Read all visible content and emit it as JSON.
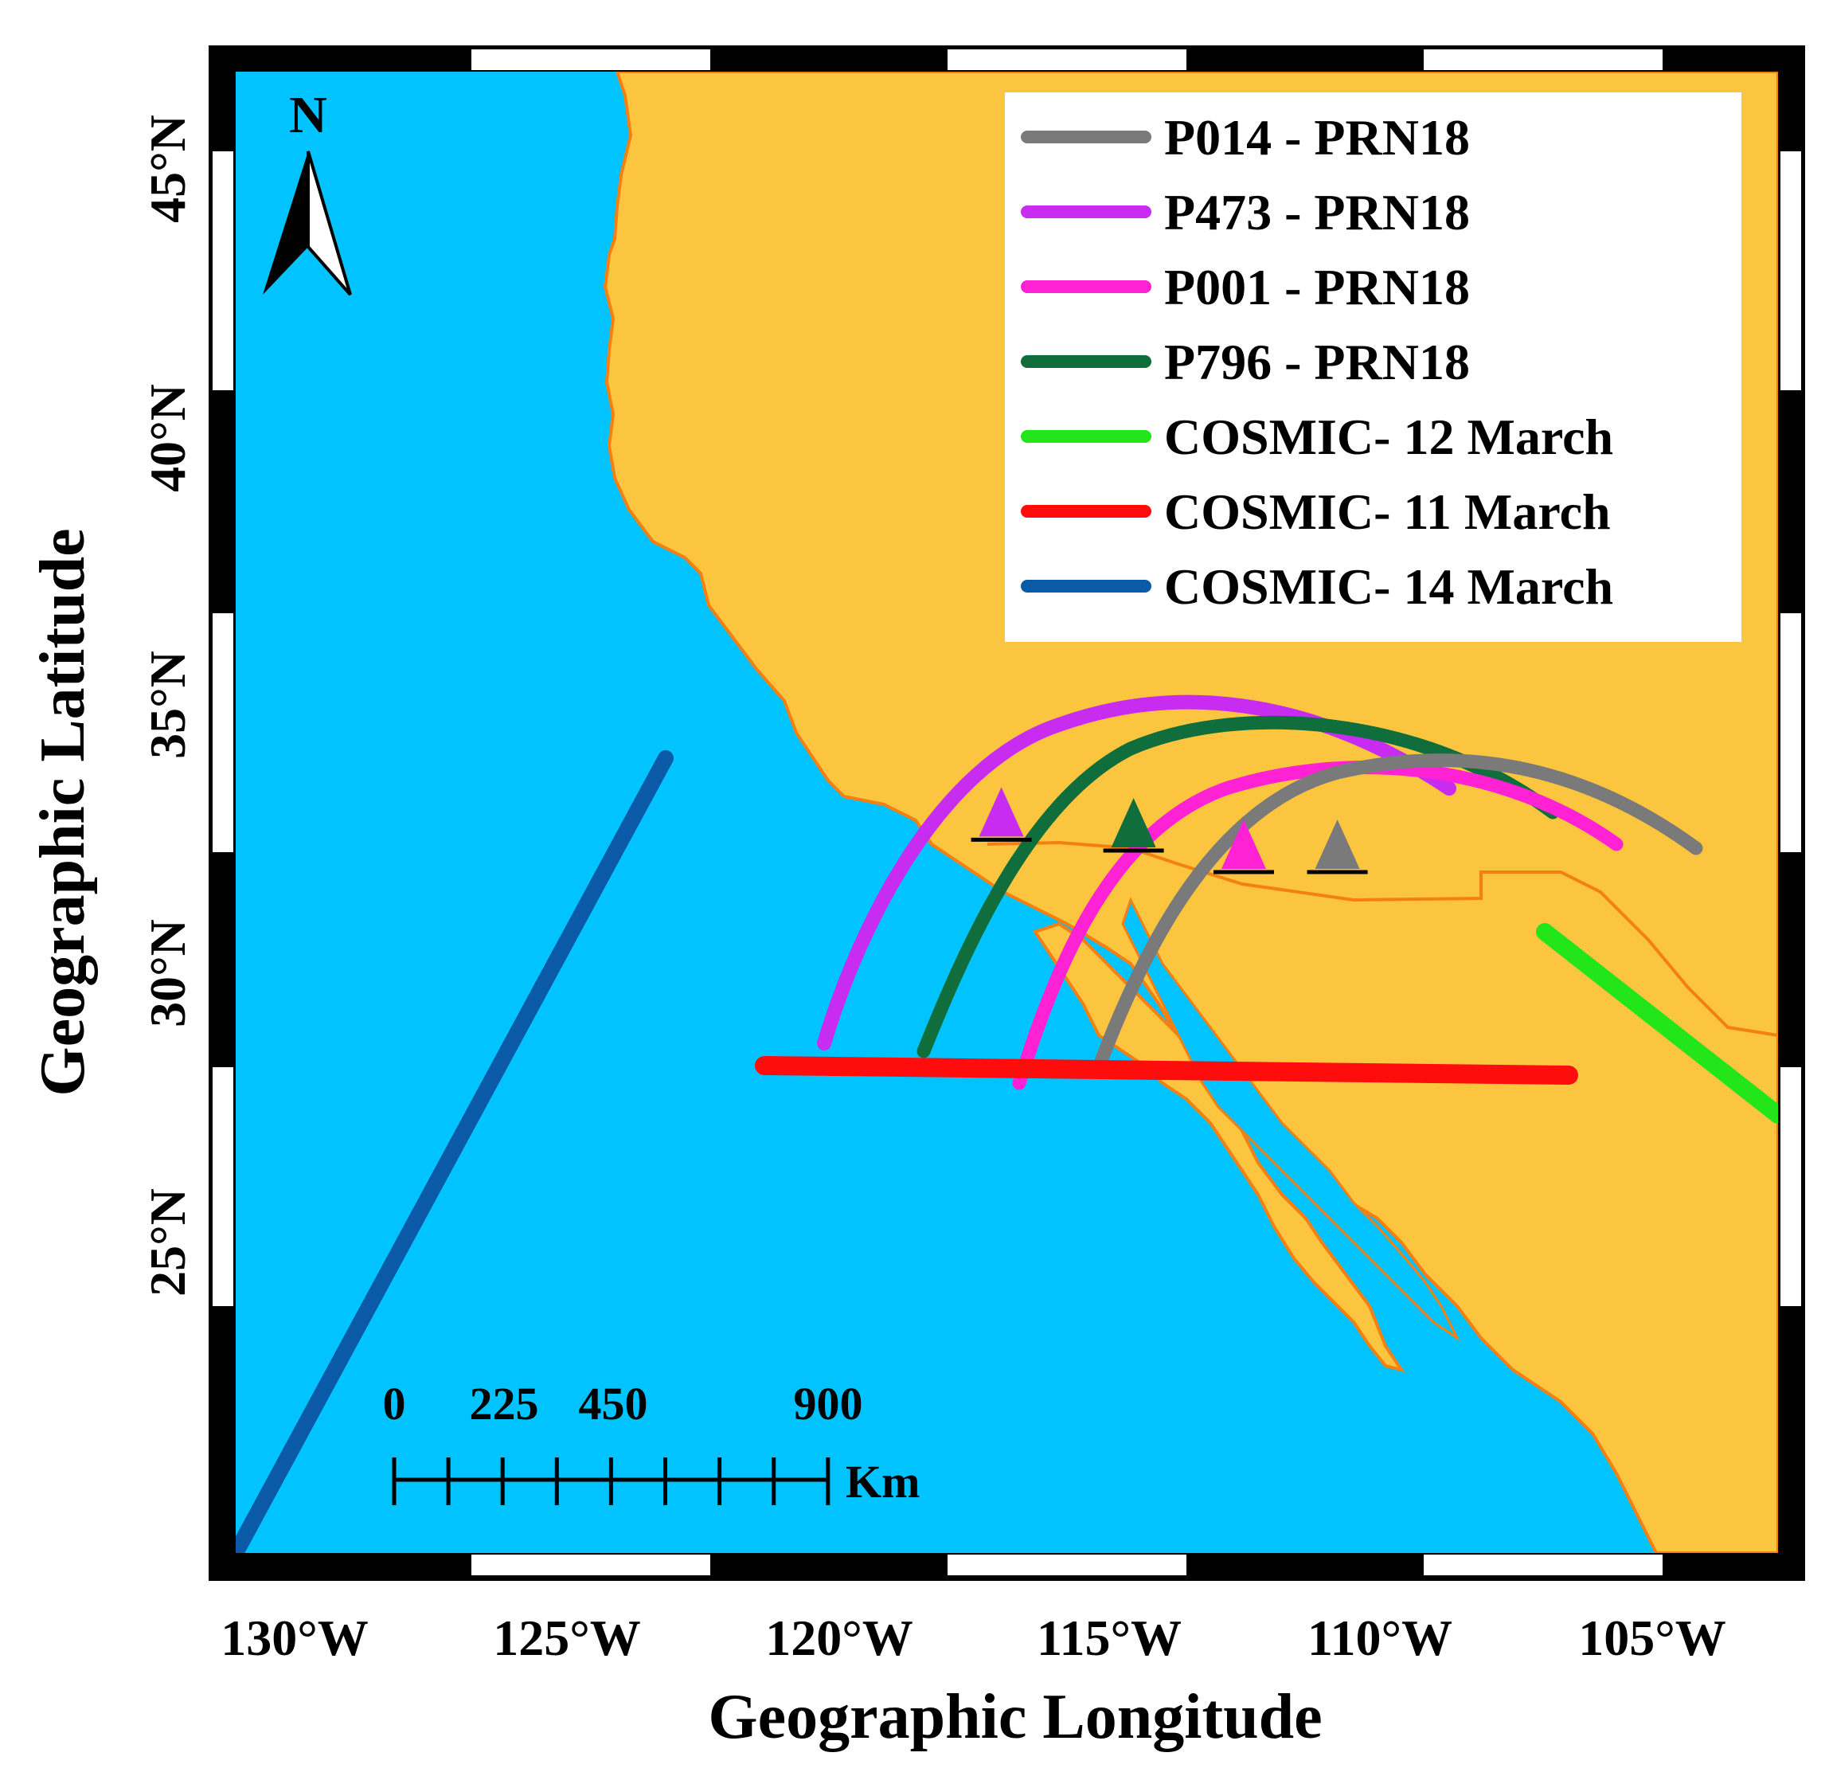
{
  "map": {
    "x_axis_title": "Geographic Longitude",
    "y_axis_title": "Geographic Latitude",
    "x_ticks": [
      "130°W",
      "125°W",
      "120°W",
      "115°W",
      "110°W",
      "105°W"
    ],
    "y_ticks": [
      "45°N",
      "40°N",
      "35°N",
      "30°N",
      "25°N"
    ],
    "north_label": "N",
    "scale_bar": {
      "labels": [
        "0",
        "225",
        "450",
        "900"
      ],
      "unit": "Km"
    },
    "colors": {
      "ocean": "#00c3ff",
      "land": "#fbc53f",
      "coastline": "#f47f12"
    }
  },
  "legend": [
    {
      "label": "P014 - PRN18",
      "color": "#7a7a7a"
    },
    {
      "label": "P473 - PRN18",
      "color": "#c72cf0"
    },
    {
      "label": "P001 - PRN18",
      "color": "#ff22d4"
    },
    {
      "label": "P796 - PRN18",
      "color": "#0f6e3c"
    },
    {
      "label": "COSMIC- 12 March",
      "color": "#22e51a"
    },
    {
      "label": "COSMIC- 11 March",
      "color": "#ff0d0d"
    },
    {
      "label": "COSMIC- 14 March",
      "color": "#0b5aa8"
    }
  ],
  "stations": [
    {
      "name": "P473",
      "color": "#c72cf0",
      "lon": -117.1,
      "lat": 32.8
    },
    {
      "name": "P796",
      "color": "#0f6e3c",
      "lon": -114.7,
      "lat": 32.6
    },
    {
      "name": "P001",
      "color": "#ff22d4",
      "lon": -112.7,
      "lat": 32.2
    },
    {
      "name": "P014",
      "color": "#7a7a7a",
      "lon": -111.0,
      "lat": 32.2
    }
  ]
}
